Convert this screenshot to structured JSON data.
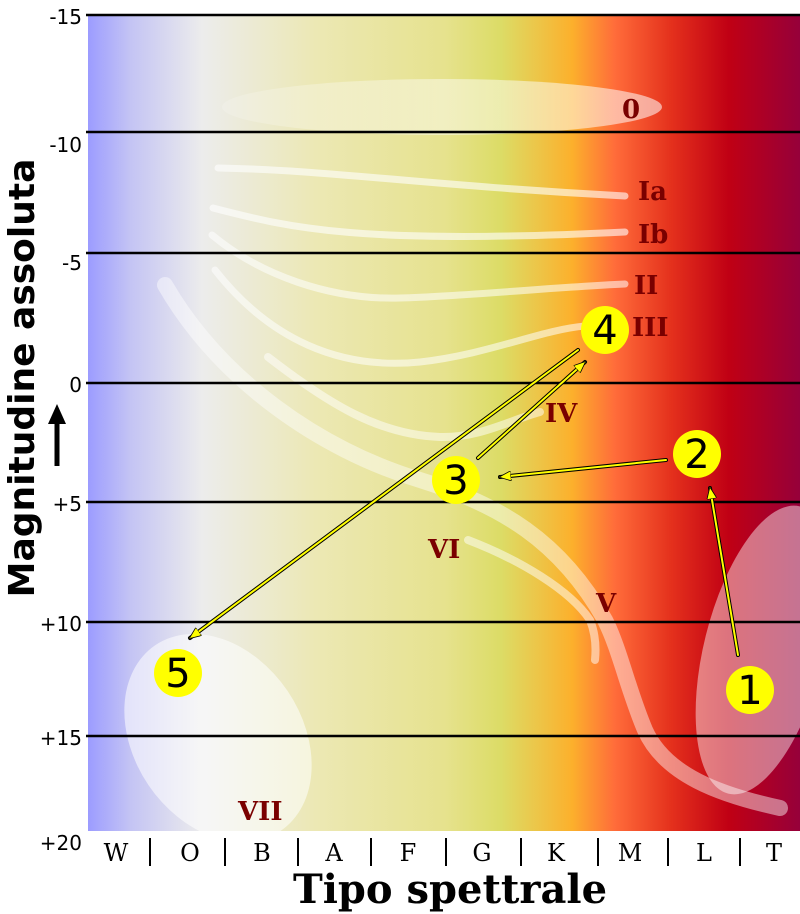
{
  "y_axis": {
    "title": "Magnitudine assoluta",
    "ticks": [
      "-15",
      "-10",
      "-5",
      "0",
      "+5",
      "+10",
      "+15",
      "+20"
    ]
  },
  "x_axis": {
    "title": "Tipo spettrale",
    "classes": [
      "W",
      "O",
      "B",
      "A",
      "F",
      "G",
      "K",
      "M",
      "L",
      "T"
    ]
  },
  "luminosity_classes": {
    "zero": "0",
    "ia": "Ia",
    "ib": "Ib",
    "ii": "II",
    "iii": "III",
    "iv": "IV",
    "v": "V",
    "vi": "VI",
    "vii": "VII"
  },
  "stages": [
    "1",
    "2",
    "3",
    "4",
    "5"
  ],
  "colors": {
    "marker_fill": "#ffff00",
    "arrow": "#ffff00",
    "label_dark_red": "#7a0000"
  }
}
